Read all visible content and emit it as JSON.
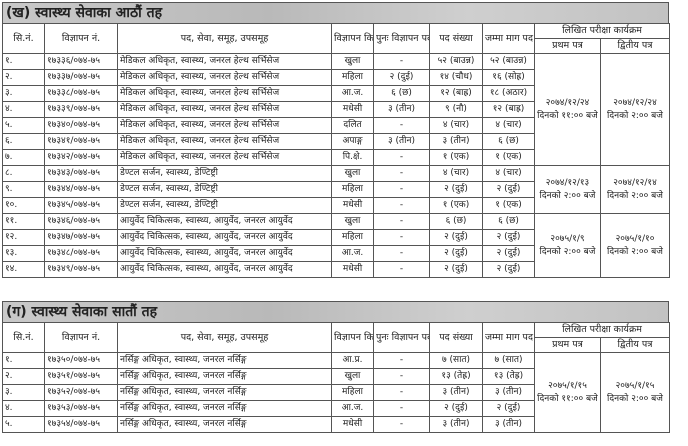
{
  "headers": {
    "sn": "सि.नं.",
    "ad_no": "विज्ञापन नं.",
    "post": "पद, सेवा, समूह, उपसमूह",
    "ad_type": "विज्ञापन किसिम",
    "re_ad": "पुनः विज्ञापन पद संख्या",
    "posts": "पद संख्या",
    "total": "जम्मा माग पद संख्या",
    "exam": "लिखित परीक्षा कार्यक्रम",
    "paper1": "प्रथम पत्र",
    "paper2": "द्वितीय पत्र"
  },
  "sections": [
    {
      "title": "(ख) स्वास्थ्य सेवाका आठौं तह",
      "rows": [
        [
          "१.",
          "१७३३६/०७४-७५",
          "मेडिकल अधिकृत, स्वास्थ्य, जनरल हेल्थ सर्भिसेज",
          "खुला",
          "-",
          "५२ (बाउन्न)",
          "५२ (बाउन्न)"
        ],
        [
          "२.",
          "१७३३७/०७४-७५",
          "मेडिकल अधिकृत, स्वास्थ्य, जनरल हेल्थ सर्भिसेज",
          "महिला",
          "२ (दुई)",
          "१४ (चौध)",
          "१६ (सोह्र)"
        ],
        [
          "३.",
          "१७३३८/०७४-७५",
          "मेडिकल अधिकृत, स्वास्थ्य, जनरल हेल्थ सर्भिसेज",
          "आ.ज.",
          "६ (छ)",
          "१२ (बाह्र)",
          "१८ (अठार)"
        ],
        [
          "४.",
          "१७३३९/०७४-७५",
          "मेडिकल अधिकृत, स्वास्थ्य, जनरल हेल्थ सर्भिसेज",
          "मधेसी",
          "३ (तीन)",
          "९ (नौ)",
          "१२ (बाह्र)"
        ],
        [
          "५.",
          "१७३४०/०७४-७५",
          "मेडिकल अधिकृत, स्वास्थ्य, जनरल हेल्थ सर्भिसेज",
          "दलित",
          "-",
          "४ (चार)",
          "४ (चार)"
        ],
        [
          "६.",
          "१७३४१/०७४-७५",
          "मेडिकल अधिकृत, स्वास्थ्य, जनरल हेल्थ सर्भिसेज",
          "अपाङ्ग",
          "३ (तीन)",
          "३ (तीन)",
          "६ (छ)"
        ],
        [
          "७.",
          "१७३४२/०७४-७५",
          "मेडिकल अधिकृत, स्वास्थ्य, जनरल हेल्थ सर्भिसेज",
          "पि.क्षे.",
          "-",
          "१ (एक)",
          "१ (एक)"
        ],
        [
          "८.",
          "१७३४३/०७४-७५",
          "डेण्टल सर्जन, स्वास्थ्य, डेण्टिष्ट्री",
          "खुला",
          "-",
          "४ (चार)",
          "४ (चार)"
        ],
        [
          "९.",
          "१७३४४/०७४-७५",
          "डेण्टल सर्जन, स्वास्थ्य, डेण्टिष्ट्री",
          "महिला",
          "-",
          "२ (दुई)",
          "२ (दुई)"
        ],
        [
          "१०.",
          "१७३४५/०७४-७५",
          "डेण्टल सर्जन, स्वास्थ्य, डेण्टिष्ट्री",
          "मधेसी",
          "-",
          "१ (एक)",
          "१ (एक)"
        ],
        [
          "११.",
          "१७३४६/०७४-७५",
          "आयुर्वेद चिकित्सक, स्वास्थ्य, आयुर्वेद, जनरल आयुर्वेद",
          "खुला",
          "-",
          "६ (छ)",
          "६ (छ)"
        ],
        [
          "१२.",
          "१७३४७/०७४-७५",
          "आयुर्वेद चिकित्सक, स्वास्थ्य, आयुर्वेद, जनरल आयुर्वेद",
          "महिला",
          "-",
          "२ (दुई)",
          "२ (दुई)"
        ],
        [
          "१३.",
          "१७३४८/०७४-७५",
          "आयुर्वेद चिकित्सक, स्वास्थ्य, आयुर्वेद, जनरल आयुर्वेद",
          "आ.ज.",
          "-",
          "२ (दुई)",
          "२ (दुई)"
        ],
        [
          "१४.",
          "१७३४९/०७४-७५",
          "आयुर्वेद चिकित्सक, स्वास्थ्य, आयुर्वेद, जनरल आयुर्वेद",
          "मधेसी",
          "-",
          "२ (दुई)",
          "२ (दुई)"
        ]
      ],
      "exams": [
        {
          "span": 7,
          "paper1": [
            "२०७४/१२/२४",
            "दिनको ११:०० बजे"
          ],
          "paper2": [
            "२०७४/१२/२४",
            "दिनको २:०० बजे"
          ]
        },
        {
          "span": 3,
          "paper1": [
            "२०७४/१२/१३",
            "दिनको २:०० बजे"
          ],
          "paper2": [
            "२०७४/१२/१४",
            "दिनको २:०० बजे"
          ]
        },
        {
          "span": 4,
          "paper1": [
            "२०७५/१/९",
            "दिनको २:०० बजे"
          ],
          "paper2": [
            "२०७५/१/१०",
            "दिनको २:०० बजे"
          ]
        }
      ]
    },
    {
      "title": "(ग) स्वास्थ्य सेवाका सातौं तह",
      "rows": [
        [
          "१.",
          "१७३५०/०७४-७५",
          "नर्सिङ्ग अधिकृत, स्वास्थ्य, जनरल नर्सिङ्ग",
          "आ.प्र.",
          "-",
          "७ (सात)",
          "७ (सात)"
        ],
        [
          "२.",
          "१७३५१/०७४-७५",
          "नर्सिङ्ग अधिकृत, स्वास्थ्य, जनरल नर्सिङ्ग",
          "खुला",
          "-",
          "१३ (तेह्र)",
          "१३ (तेह्र)"
        ],
        [
          "३.",
          "१७३५२/०७४-७५",
          "नर्सिङ्ग अधिकृत, स्वास्थ्य, जनरल नर्सिङ्ग",
          "महिला",
          "-",
          "३ (तीन)",
          "३ (तीन)"
        ],
        [
          "४.",
          "१७३५३/०७४-७५",
          "नर्सिङ्ग अधिकृत, स्वास्थ्य, जनरल नर्सिङ्ग",
          "आ.ज.",
          "-",
          "२ (दुई)",
          "२ (दुई)"
        ],
        [
          "५.",
          "१७३५४/०७४-७५",
          "नर्सिङ्ग अधिकृत, स्वास्थ्य, जनरल नर्सिङ्ग",
          "मधेसी",
          "-",
          "३ (तीन)",
          "३ (तीन)"
        ]
      ],
      "exams": [
        {
          "span": 5,
          "paper1": [
            "२०७५/१/१५",
            "दिनको ११:०० बजे"
          ],
          "paper2": [
            "२०७५/१/१५",
            "दिनको २:०० बजे"
          ]
        }
      ]
    }
  ]
}
